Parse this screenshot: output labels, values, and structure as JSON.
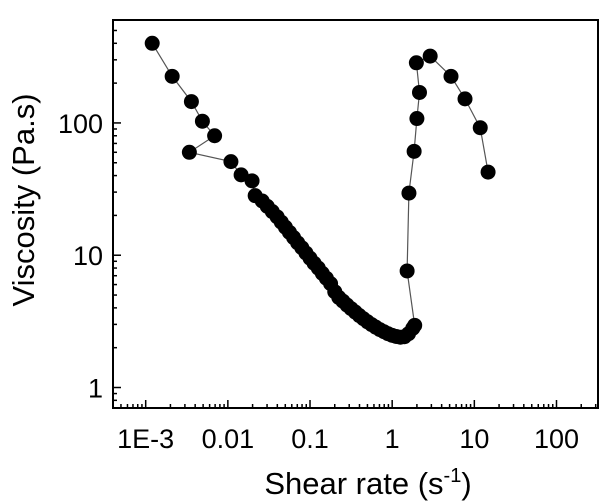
{
  "chart_data": {
    "type": "scatter",
    "title": "",
    "xlabel": "Shear rate (s",
    "xlabel_superscript": "-1",
    "xlabel_suffix": ")",
    "ylabel": "Viscosity (Pa.s)",
    "xscale": "log",
    "yscale": "log",
    "xlim": [
      0.0004,
      320
    ],
    "ylim": [
      0.7,
      600
    ],
    "grid": false,
    "legend": "none",
    "marker_color": "#000000",
    "line_color": "#555555",
    "x_ticks": [
      {
        "value": 0.001,
        "label": "1E-3"
      },
      {
        "value": 0.01,
        "label": "0.01"
      },
      {
        "value": 0.1,
        "label": "0.1"
      },
      {
        "value": 1,
        "label": "1"
      },
      {
        "value": 10,
        "label": "10"
      },
      {
        "value": 100,
        "label": "100"
      }
    ],
    "y_ticks": [
      {
        "value": 1,
        "label": "1"
      },
      {
        "value": 10,
        "label": "10"
      },
      {
        "value": 100,
        "label": "100"
      }
    ],
    "series": [
      {
        "points": [
          [
            0.0012,
            400
          ],
          [
            0.0021,
            225
          ],
          [
            0.0036,
            145
          ],
          [
            0.0049,
            103
          ],
          [
            0.0069,
            80
          ],
          [
            0.0034,
            60
          ],
          [
            0.0109,
            51
          ],
          [
            0.0145,
            40.5
          ],
          [
            0.0197,
            36.5
          ],
          [
            0.0215,
            28.2
          ],
          [
            0.0262,
            25.7
          ],
          [
            0.0302,
            23.4
          ],
          [
            0.0347,
            21.4
          ],
          [
            0.0398,
            19.5
          ],
          [
            0.0447,
            17.8
          ],
          [
            0.0501,
            16.3
          ],
          [
            0.0562,
            14.9
          ],
          [
            0.0631,
            13.6
          ],
          [
            0.0708,
            12.4
          ],
          [
            0.0794,
            11.4
          ],
          [
            0.0891,
            10.4
          ],
          [
            0.1,
            9.5
          ],
          [
            0.112,
            8.7
          ],
          [
            0.126,
            8.0
          ],
          [
            0.141,
            7.3
          ],
          [
            0.158,
            6.7
          ],
          [
            0.178,
            6.1
          ],
          [
            0.2,
            5.3
          ],
          [
            0.224,
            4.8
          ],
          [
            0.251,
            4.5
          ],
          [
            0.282,
            4.2
          ],
          [
            0.316,
            3.95
          ],
          [
            0.355,
            3.72
          ],
          [
            0.398,
            3.5
          ],
          [
            0.447,
            3.31
          ],
          [
            0.501,
            3.14
          ],
          [
            0.562,
            2.99
          ],
          [
            0.631,
            2.86
          ],
          [
            0.708,
            2.74
          ],
          [
            0.794,
            2.64
          ],
          [
            0.891,
            2.55
          ],
          [
            1.0,
            2.48
          ],
          [
            1.12,
            2.43
          ],
          [
            1.26,
            2.4
          ],
          [
            1.41,
            2.42
          ],
          [
            1.58,
            2.55
          ],
          [
            1.78,
            2.8
          ],
          [
            1.88,
            2.95
          ],
          [
            1.52,
            7.6
          ],
          [
            1.6,
            29.5
          ],
          [
            1.85,
            61
          ],
          [
            2.0,
            108
          ],
          [
            2.15,
            170
          ],
          [
            1.97,
            285
          ],
          [
            2.9,
            320
          ],
          [
            5.2,
            225
          ],
          [
            7.7,
            152
          ],
          [
            11.8,
            92
          ],
          [
            14.7,
            42.5
          ]
        ]
      }
    ]
  }
}
